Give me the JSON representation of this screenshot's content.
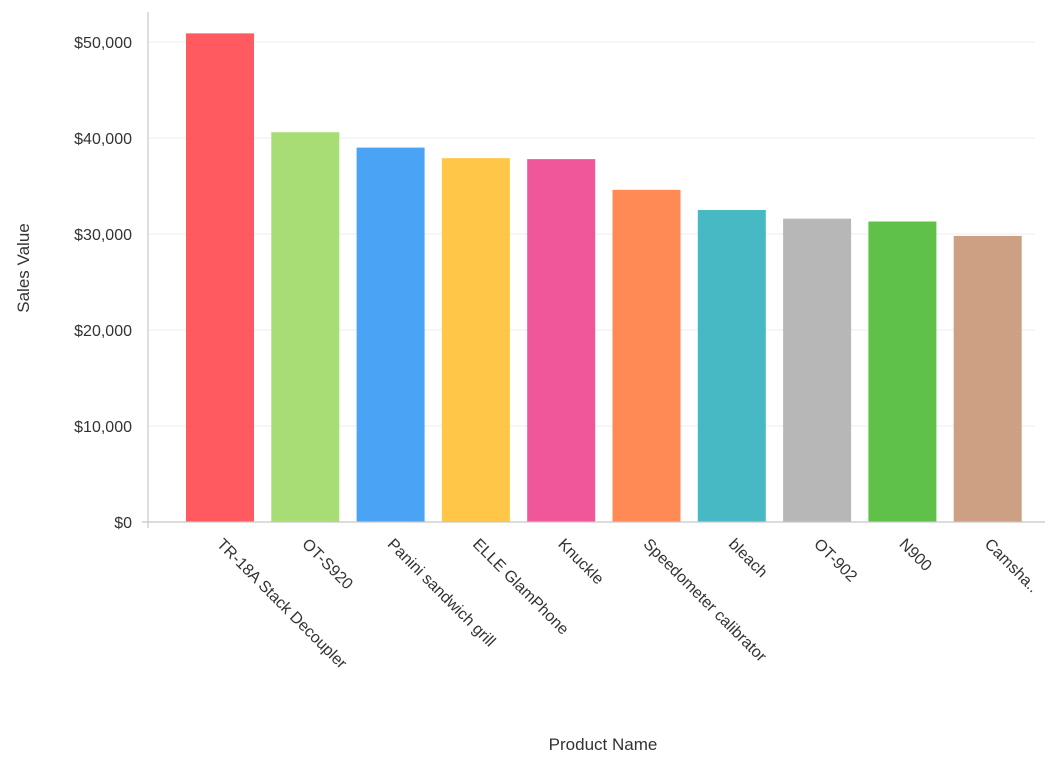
{
  "chart_data": {
    "type": "bar",
    "categories": [
      "TR-18A Stack Decoupler",
      "OT-S920",
      "Panini sandwich grill",
      "ELLE GlamPhone",
      "Knuckle",
      "Speedometer calibrator",
      "bleach",
      "OT-902",
      "N900",
      "Camsha.."
    ],
    "values": [
      50900,
      40600,
      39000,
      37900,
      37800,
      34600,
      32500,
      31600,
      31300,
      29800
    ],
    "colors": [
      "#ff5a5f",
      "#a8dc74",
      "#4aa3f5",
      "#ffc647",
      "#f0569a",
      "#ff8a55",
      "#46b9c4",
      "#b7b7b7",
      "#5fc04a",
      "#cda083"
    ],
    "xlabel": "Product Name",
    "ylabel": "Sales Value",
    "ylim": [
      0,
      50000
    ],
    "yticks": [
      0,
      10000,
      20000,
      30000,
      40000,
      50000
    ],
    "ytick_labels": [
      "$0",
      "$10,000",
      "$20,000",
      "$30,000",
      "$40,000",
      "$50,000"
    ],
    "grid": true,
    "legend": "none"
  }
}
